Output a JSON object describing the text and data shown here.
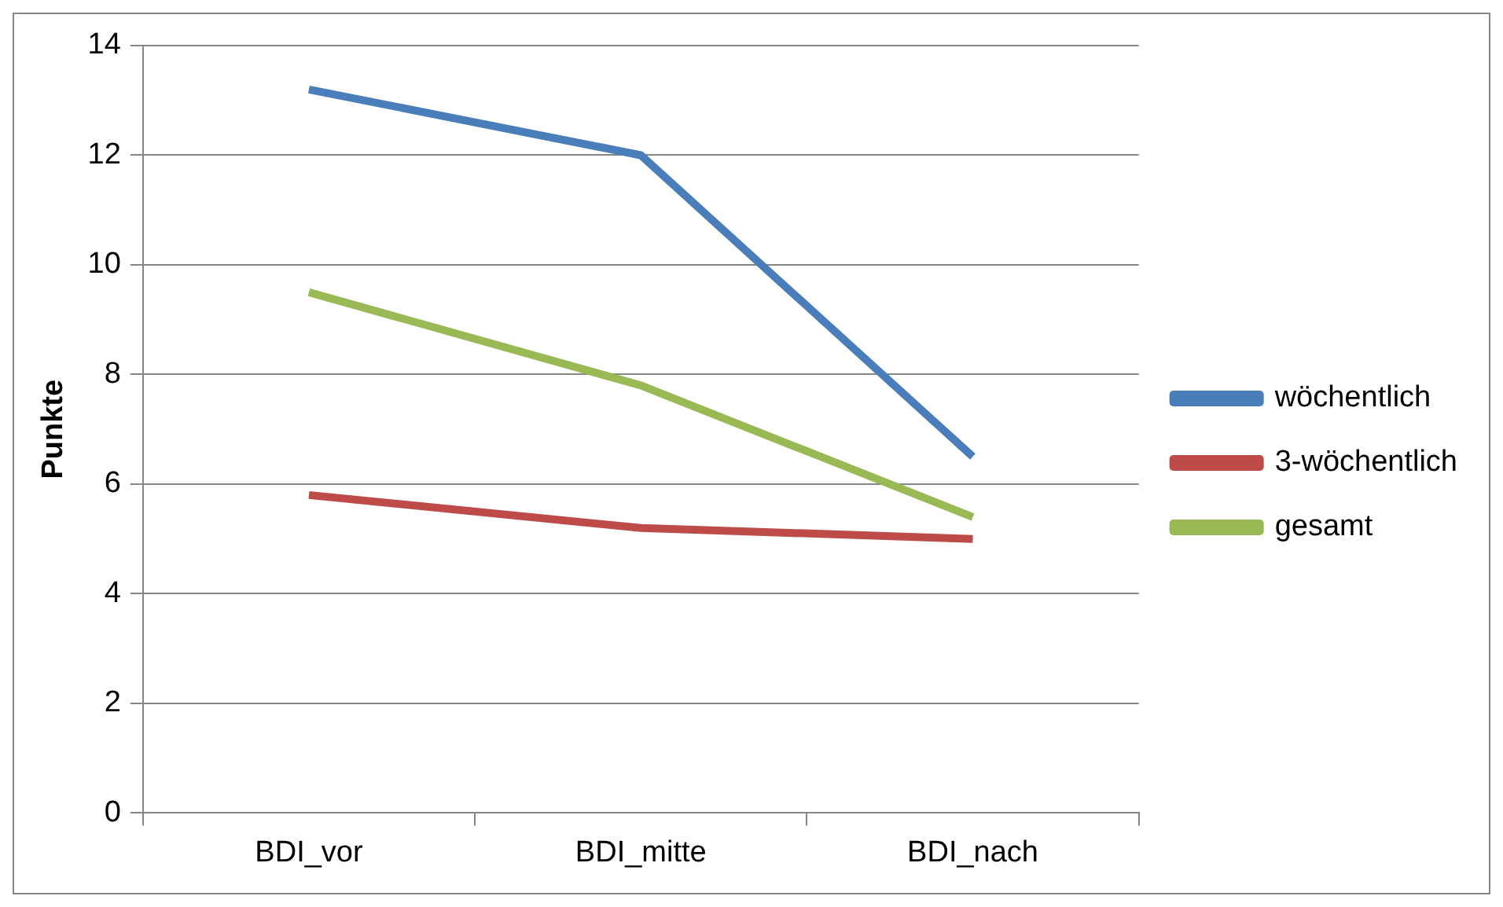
{
  "chart_data": {
    "type": "line",
    "ylabel": "Punkte",
    "categories": [
      "BDI_vor",
      "BDI_mitte",
      "BDI_nach"
    ],
    "series": [
      {
        "name": "wöchentlich",
        "color": "#4a7ebb",
        "values": [
          13.2,
          12.0,
          6.5
        ]
      },
      {
        "name": "3-wöchentlich",
        "color": "#be4b48",
        "values": [
          5.8,
          5.2,
          5.0
        ]
      },
      {
        "name": "gesamt",
        "color": "#98b954",
        "values": [
          9.5,
          7.8,
          5.4
        ]
      }
    ],
    "ylim": [
      0,
      14
    ],
    "yticks": [
      0,
      2,
      4,
      6,
      8,
      10,
      12,
      14
    ],
    "grid": "y",
    "legend": "right",
    "marker": "none",
    "line_style": "solid"
  }
}
